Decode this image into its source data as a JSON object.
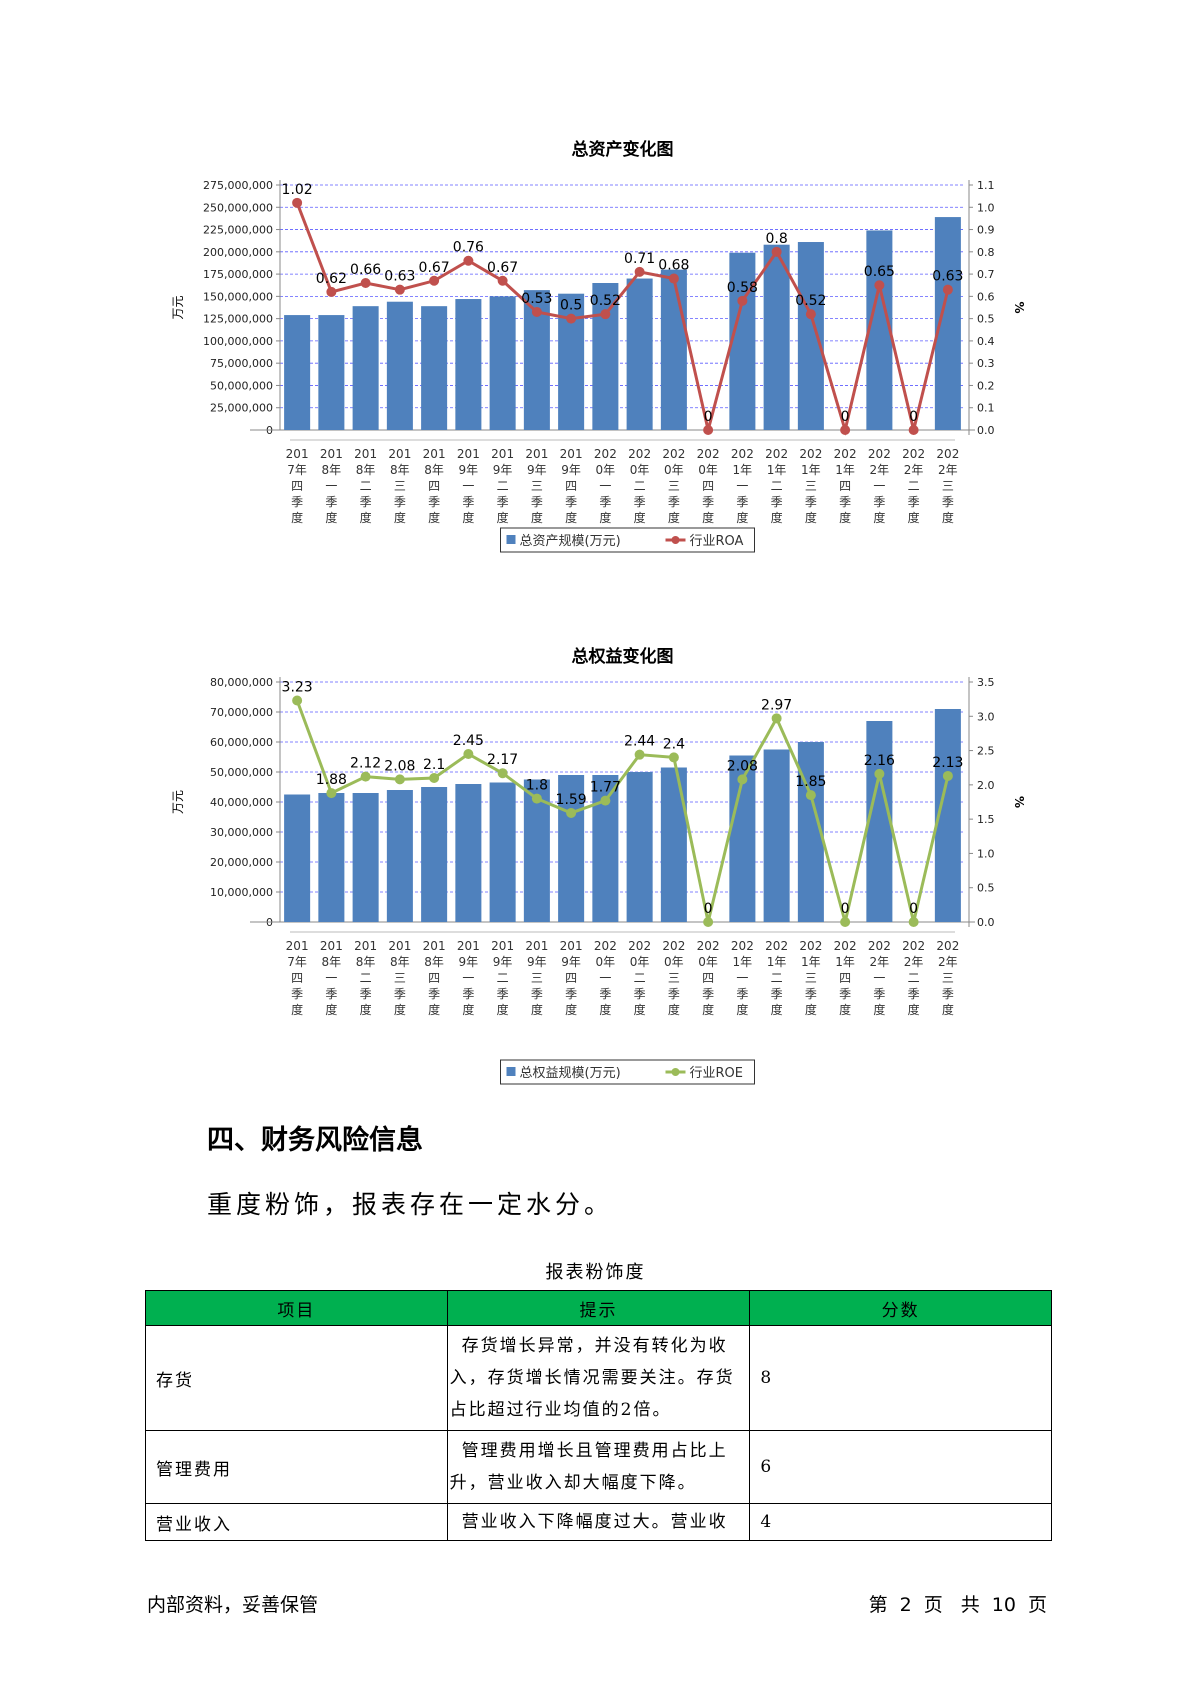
{
  "charts": [
    {
      "type": "bar",
      "title": "总资产变化图",
      "ylabel_left": "万元",
      "ylabel_right": "%",
      "ylim_left": [
        0,
        275000000
      ],
      "yticks_left": [
        0,
        25000000,
        50000000,
        75000000,
        100000000,
        125000000,
        150000000,
        175000000,
        200000000,
        225000000,
        250000000,
        275000000
      ],
      "ytick_labels_left": [
        "0",
        "25,000,000",
        "50,000,000",
        "75,000,000",
        "100,000,000",
        "125,000,000",
        "150,000,000",
        "175,000,000",
        "200,000,000",
        "225,000,000",
        "250,000,000",
        "275,000,000"
      ],
      "ylim_right": [
        0,
        1.1
      ],
      "yticks_right": [
        0,
        0.1,
        0.2,
        0.3,
        0.4,
        0.5,
        0.6,
        0.7,
        0.8,
        0.9,
        1.0,
        1.1
      ],
      "ytick_labels_right": [
        "0.0",
        "0.1",
        "0.2",
        "0.3",
        "0.4",
        "0.5",
        "0.6",
        "0.7",
        "0.8",
        "0.9",
        "1.0",
        "1.1"
      ],
      "categories": [
        "2017年四季度",
        "2018年一季度",
        "2018年二季度",
        "2018年三季度",
        "2018年四季度",
        "2019年一季度",
        "2019年二季度",
        "2019年三季度",
        "2019年四季度",
        "2020年一季度",
        "2020年二季度",
        "2020年三季度",
        "2020年四季度",
        "2021年一季度",
        "2021年二季度",
        "2021年三季度",
        "2021年四季度",
        "2022年一季度",
        "2022年二季度",
        "2022年三季度"
      ],
      "series": [
        {
          "name": "总资产规模(万元)",
          "kind": "bar",
          "color": "#4f81bd",
          "values": [
            129000000,
            129000000,
            139000000,
            144000000,
            139000000,
            147000000,
            150000000,
            157000000,
            153000000,
            165000000,
            170000000,
            180000000,
            0,
            199000000,
            208000000,
            211000000,
            0,
            224000000,
            0,
            239000000
          ]
        },
        {
          "name": "行业ROA",
          "kind": "line",
          "color": "#c0504d",
          "values": [
            1.02,
            0.62,
            0.66,
            0.63,
            0.67,
            0.76,
            0.67,
            0.53,
            0.5,
            0.52,
            0.71,
            0.68,
            0,
            0.58,
            0.8,
            0.52,
            0,
            0.65,
            0,
            0.63
          ],
          "labels": [
            "1.02",
            "0.62",
            "0.66",
            "0.63",
            "0.67",
            "0.76",
            "0.67",
            "0.53",
            "0.5",
            "0.52",
            "0.71",
            "0.68",
            "0",
            "0.58",
            "0.8",
            "0.52",
            "0",
            "0.65",
            "0",
            "0.63"
          ]
        }
      ],
      "grid": true,
      "legend": "bottom"
    },
    {
      "type": "bar",
      "title": "总权益变化图",
      "ylabel_left": "万元",
      "ylabel_right": "%",
      "ylim_left": [
        0,
        80000000
      ],
      "yticks_left": [
        0,
        10000000,
        20000000,
        30000000,
        40000000,
        50000000,
        60000000,
        70000000,
        80000000
      ],
      "ytick_labels_left": [
        "0",
        "10,000,000",
        "20,000,000",
        "30,000,000",
        "40,000,000",
        "50,000,000",
        "60,000,000",
        "70,000,000",
        "80,000,000"
      ],
      "ylim_right": [
        0,
        3.5
      ],
      "yticks_right": [
        0,
        0.5,
        1.0,
        1.5,
        2.0,
        2.5,
        3.0,
        3.5
      ],
      "ytick_labels_right": [
        "0.0",
        "0.5",
        "1.0",
        "1.5",
        "2.0",
        "2.5",
        "3.0",
        "3.5"
      ],
      "categories": [
        "2017年四季度",
        "2018年一季度",
        "2018年二季度",
        "2018年三季度",
        "2018年四季度",
        "2019年一季度",
        "2019年二季度",
        "2019年三季度",
        "2019年四季度",
        "2020年一季度",
        "2020年二季度",
        "2020年三季度",
        "2020年四季度",
        "2021年一季度",
        "2021年二季度",
        "2021年三季度",
        "2021年四季度",
        "2022年一季度",
        "2022年二季度",
        "2022年三季度"
      ],
      "series": [
        {
          "name": "总权益规模(万元)",
          "kind": "bar",
          "color": "#4f81bd",
          "values": [
            42500000,
            43000000,
            43000000,
            44000000,
            45000000,
            46000000,
            46500000,
            47500000,
            49000000,
            49000000,
            50000000,
            51500000,
            0,
            55500000,
            57500000,
            60000000,
            0,
            67000000,
            0,
            71000000
          ]
        },
        {
          "name": "行业ROE",
          "kind": "line",
          "color": "#9bbb59",
          "values": [
            3.23,
            1.88,
            2.12,
            2.08,
            2.1,
            2.45,
            2.17,
            1.8,
            1.59,
            1.77,
            2.44,
            2.4,
            0,
            2.08,
            2.97,
            1.85,
            0,
            2.16,
            0,
            2.13
          ],
          "labels": [
            "3.23",
            "1.88",
            "2.12",
            "2.08",
            "2.1",
            "2.45",
            "2.17",
            "1.8",
            "1.59",
            "1.77",
            "2.44",
            "2.4",
            "0",
            "2.08",
            "2.97",
            "1.85",
            "0",
            "2.16",
            "0",
            "2.13"
          ]
        }
      ],
      "grid": true,
      "legend": "bottom"
    }
  ],
  "section": {
    "heading": "四、财务风险信息",
    "paragraph": "重度粉饰，报表存在一定水分。"
  },
  "table": {
    "caption": "报表粉饰度",
    "headers": [
      "项目",
      "提示",
      "分数"
    ],
    "rows": [
      {
        "item": "存货",
        "tip": "存货增长异常，并没有转化为收入，存货增长情况需要关注。存货占比超过行业均值的2倍。",
        "score": "8"
      },
      {
        "item": "管理费用",
        "tip": "管理费用增长且管理费用占比上升，营业收入却大幅度下降。",
        "score": "6"
      },
      {
        "item": "营业收入",
        "tip": "营业收入下降幅度过大。营业收",
        "score": "4"
      }
    ]
  },
  "footer": {
    "left": "内部资料，妥善保管",
    "page_prefix": "第",
    "page_current": "2",
    "page_unit": "页",
    "total_prefix": "共",
    "page_total": "10",
    "total_unit": "页"
  }
}
